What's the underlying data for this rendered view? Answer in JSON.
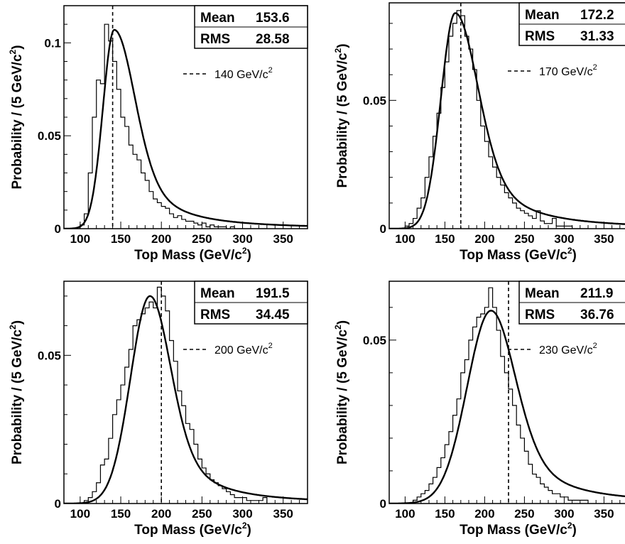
{
  "chart_data": [
    {
      "type": "line",
      "xlabel": "Top Mass (GeV/c²)",
      "ylabel": "Probability / (5 GeV/c²)",
      "xlim": [
        80,
        380
      ],
      "ylim": [
        0,
        0.12
      ],
      "xticks": [
        100,
        150,
        200,
        250,
        300,
        350
      ],
      "yticks": [
        0,
        0.05,
        0.1
      ],
      "ytick_labels": [
        "0",
        "0.05",
        "0.1"
      ],
      "stats": {
        "mean_label": "Mean",
        "mean": "153.6",
        "rms_label": "RMS",
        "rms": "28.58"
      },
      "reference_line": {
        "x": 140,
        "label": "140 GeV/c²"
      },
      "fit": {
        "peak_x": 142,
        "peak_y": 0.107,
        "sigma_left": 14,
        "sigma_right": 25
      },
      "histogram": {
        "x0": 95,
        "bin_width": 5,
        "values": [
          0,
          0.002,
          0.008,
          0.03,
          0.06,
          0.08,
          0.078,
          0.11,
          0.101,
          0.09,
          0.075,
          0.06,
          0.055,
          0.045,
          0.04,
          0.037,
          0.03,
          0.026,
          0.02,
          0.016,
          0.014,
          0.012,
          0.011,
          0.008,
          0.006,
          0.007,
          0.005,
          0.004,
          0.004,
          0.003,
          0.002,
          0.003,
          0.001,
          0.002,
          0.001,
          0.001,
          0.001,
          0.0,
          0.001,
          0,
          0,
          0,
          0,
          0,
          0,
          0,
          0
        ]
      }
    },
    {
      "type": "line",
      "xlabel": "Top Mass (GeV/c²)",
      "ylabel": "Probability / (5 GeV/c²)",
      "xlim": [
        80,
        380
      ],
      "ylim": [
        0,
        0.088
      ],
      "xticks": [
        100,
        150,
        200,
        250,
        300,
        350
      ],
      "yticks": [
        0,
        0.05
      ],
      "ytick_labels": [
        "0",
        "0.05"
      ],
      "stats": {
        "mean_label": "Mean",
        "mean": "172.2",
        "rms_label": "RMS",
        "rms": "31.33"
      },
      "reference_line": {
        "x": 170,
        "label": "170 GeV/c²"
      },
      "fit": {
        "peak_x": 163,
        "peak_y": 0.084,
        "sigma_left": 18,
        "sigma_right": 28
      },
      "histogram": {
        "x0": 95,
        "bin_width": 5,
        "values": [
          0,
          0.001,
          0.002,
          0.004,
          0.008,
          0.012,
          0.02,
          0.028,
          0.036,
          0.045,
          0.055,
          0.065,
          0.075,
          0.08,
          0.085,
          0.083,
          0.075,
          0.07,
          0.062,
          0.05,
          0.04,
          0.034,
          0.028,
          0.024,
          0.02,
          0.017,
          0.014,
          0.012,
          0.01,
          0.008,
          0.007,
          0.006,
          0.005,
          0.004,
          0.007,
          0.003,
          0.002,
          0.002,
          0.004,
          0.001,
          0.001,
          0.001,
          0.001,
          0,
          0,
          0,
          0
        ]
      }
    },
    {
      "type": "line",
      "xlabel": "Top Mass (GeV/c²)",
      "ylabel": "Probability / (5 GeV/c²)",
      "xlim": [
        80,
        380
      ],
      "ylim": [
        0,
        0.075
      ],
      "xticks": [
        100,
        150,
        200,
        250,
        300,
        350
      ],
      "yticks": [
        0,
        0.05
      ],
      "ytick_labels": [
        "0",
        "0.05"
      ],
      "stats": {
        "mean_label": "Mean",
        "mean": "191.5",
        "rms_label": "RMS",
        "rms": "34.45"
      },
      "reference_line": {
        "x": 200,
        "label": "200 GeV/c²"
      },
      "fit": {
        "peak_x": 186,
        "peak_y": 0.07,
        "sigma_left": 24,
        "sigma_right": 25
      },
      "histogram": {
        "x0": 95,
        "bin_width": 5,
        "values": [
          0,
          0,
          0.001,
          0.002,
          0.004,
          0.007,
          0.013,
          0.015,
          0.022,
          0.03,
          0.035,
          0.04,
          0.046,
          0.052,
          0.06,
          0.062,
          0.064,
          0.066,
          0.068,
          0.066,
          0.073,
          0.07,
          0.065,
          0.055,
          0.048,
          0.038,
          0.033,
          0.027,
          0.025,
          0.02,
          0.015,
          0.012,
          0.01,
          0.008,
          0.007,
          0.006,
          0.005,
          0.004,
          0.003,
          0.002,
          0.002,
          0.002,
          0.001,
          0.001,
          0.001,
          0.001,
          0.002
        ]
      }
    },
    {
      "type": "line",
      "xlabel": "Top Mass (GeV/c²)",
      "ylabel": "Probability / (5 GeV/c²)",
      "xlim": [
        80,
        380
      ],
      "ylim": [
        0,
        0.068
      ],
      "xticks": [
        100,
        150,
        200,
        250,
        300,
        350
      ],
      "yticks": [
        0,
        0.05
      ],
      "ytick_labels": [
        "0",
        "0.05"
      ],
      "stats": {
        "mean_label": "Mean",
        "mean": "211.9",
        "rms_label": "RMS",
        "rms": "36.76"
      },
      "reference_line": {
        "x": 230,
        "label": "230 GeV/c²"
      },
      "fit": {
        "peak_x": 208,
        "peak_y": 0.059,
        "sigma_left": 30,
        "sigma_right": 30
      },
      "histogram": {
        "x0": 95,
        "bin_width": 5,
        "values": [
          0,
          0,
          0,
          0.001,
          0.002,
          0.003,
          0.004,
          0.006,
          0.008,
          0.011,
          0.014,
          0.018,
          0.022,
          0.027,
          0.032,
          0.04,
          0.044,
          0.05,
          0.054,
          0.057,
          0.058,
          0.06,
          0.066,
          0.06,
          0.053,
          0.045,
          0.04,
          0.035,
          0.03,
          0.024,
          0.02,
          0.016,
          0.012,
          0.009,
          0.008,
          0.006,
          0.005,
          0.004,
          0.003,
          0.003,
          0.002,
          0.002,
          0.001,
          0.001,
          0.001,
          0.001,
          0.001
        ]
      }
    }
  ]
}
